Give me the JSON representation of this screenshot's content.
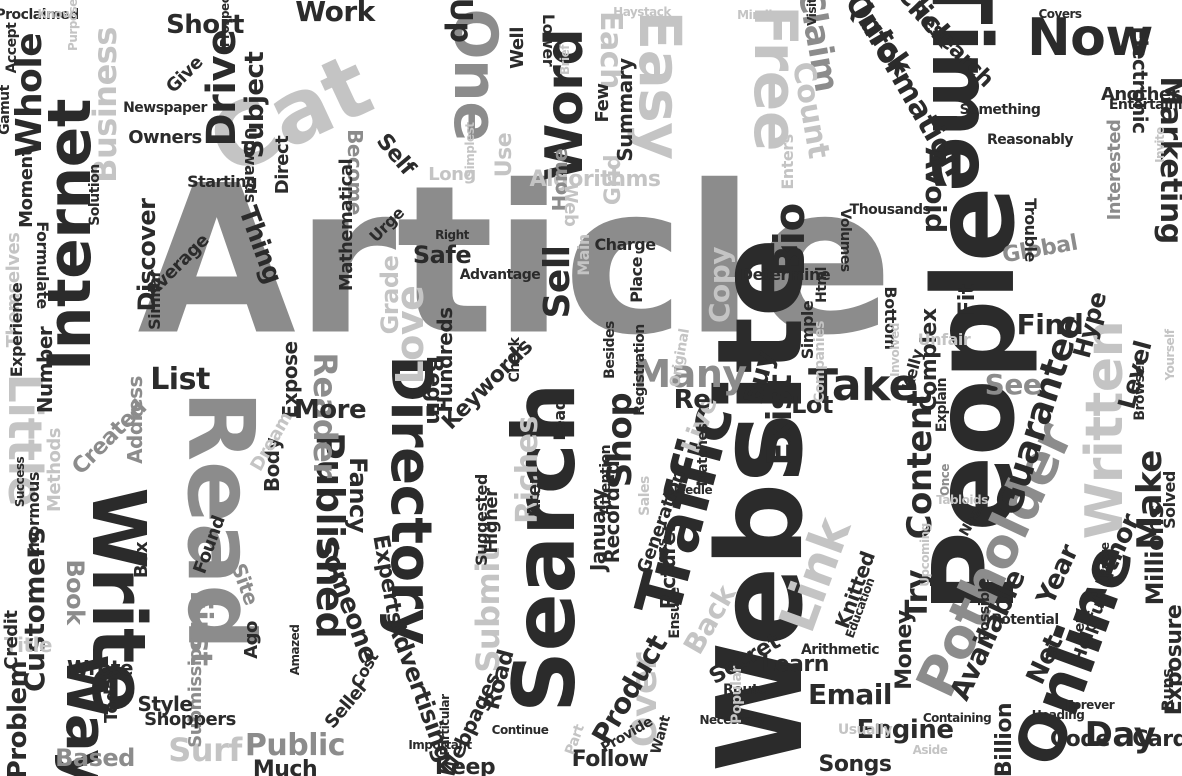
{
  "palette": {
    "dark": "#2b2b2b",
    "mid": "#8c8c8c",
    "light": "#c4c4c4",
    "faint": "#dedede"
  },
  "words": [
    {
      "text": "Article",
      "tone": "mid"
    },
    {
      "text": "Website",
      "tone": "dark"
    },
    {
      "text": "People",
      "tone": "dark"
    },
    {
      "text": "Read",
      "tone": "mid"
    },
    {
      "text": "Search",
      "tone": "dark"
    },
    {
      "text": "Write",
      "tone": "dark"
    },
    {
      "text": "Cat",
      "tone": "light"
    },
    {
      "text": "Time",
      "tone": "dark"
    },
    {
      "text": "Directory",
      "tone": "dark"
    },
    {
      "text": "Traffic",
      "tone": "dark"
    },
    {
      "text": "Potholder",
      "tone": "mid"
    },
    {
      "text": "Online",
      "tone": "dark"
    },
    {
      "text": "Internet",
      "tone": "dark"
    },
    {
      "text": "Way",
      "tone": "dark"
    },
    {
      "text": "Written",
      "tone": "light"
    },
    {
      "text": "Easy",
      "tone": "light"
    },
    {
      "text": "One",
      "tone": "mid"
    },
    {
      "text": "Free",
      "tone": "light"
    },
    {
      "text": "Now",
      "tone": "dark"
    },
    {
      "text": "Word",
      "tone": "dark"
    },
    {
      "text": "Little",
      "tone": "light"
    },
    {
      "text": "Link",
      "tone": "light"
    },
    {
      "text": "Take",
      "tone": "dark"
    },
    {
      "text": "Guarantee",
      "tone": "dark"
    },
    {
      "text": "Published",
      "tone": "dark"
    },
    {
      "text": "Drive",
      "tone": "dark"
    },
    {
      "text": "Whole",
      "tone": "dark"
    },
    {
      "text": "Business",
      "tone": "light"
    },
    {
      "text": "Claim",
      "tone": "mid"
    },
    {
      "text": "Information",
      "tone": "dark"
    },
    {
      "text": "Quick",
      "tone": "dark"
    },
    {
      "text": "Click",
      "tone": "dark"
    },
    {
      "text": "Marketing",
      "tone": "dark"
    },
    {
      "text": "Many",
      "tone": "mid"
    },
    {
      "text": "Reader",
      "tone": "mid"
    },
    {
      "text": "Bio",
      "tone": "dark"
    },
    {
      "text": "Sell",
      "tone": "dark"
    },
    {
      "text": "Love",
      "tone": "light"
    },
    {
      "text": "Exist",
      "tone": "dark"
    },
    {
      "text": "Content",
      "tone": "dark"
    },
    {
      "text": "Make",
      "tone": "dark"
    },
    {
      "text": "Day",
      "tone": "dark"
    },
    {
      "text": "Try",
      "tone": "dark"
    },
    {
      "text": "Submit",
      "tone": "light"
    },
    {
      "text": "Riches",
      "tone": "light"
    },
    {
      "text": "Shop",
      "tone": "dark"
    },
    {
      "text": "Over",
      "tone": "light"
    },
    {
      "text": "Surf",
      "tone": "light"
    },
    {
      "text": "Public",
      "tone": "mid"
    },
    {
      "text": "Email",
      "tone": "dark"
    },
    {
      "text": "Engine",
      "tone": "dark"
    },
    {
      "text": "Customers",
      "tone": "dark"
    },
    {
      "text": "Problem",
      "tone": "dark"
    },
    {
      "text": "Book",
      "tone": "mid"
    },
    {
      "text": "Based",
      "tone": "mid"
    },
    {
      "text": "List",
      "tone": "dark"
    },
    {
      "text": "Up",
      "tone": "dark"
    },
    {
      "text": "Each",
      "tone": "light"
    },
    {
      "text": "Count",
      "tone": "light"
    },
    {
      "text": "Avoid",
      "tone": "dark"
    },
    {
      "text": "Find",
      "tone": "dark"
    },
    {
      "text": "Hype",
      "tone": "dark"
    },
    {
      "text": "Level",
      "tone": "dark"
    },
    {
      "text": "See",
      "tone": "mid"
    },
    {
      "text": "Live",
      "tone": "light"
    },
    {
      "text": "Buy",
      "tone": "dark"
    },
    {
      "text": "Available",
      "tone": "dark"
    },
    {
      "text": "Year",
      "tone": "dark"
    },
    {
      "text": "Author",
      "tone": "dark"
    },
    {
      "text": "Net",
      "tone": "dark"
    },
    {
      "text": "Back",
      "tone": "light"
    },
    {
      "text": "Product",
      "tone": "dark"
    },
    {
      "text": "More",
      "tone": "dark"
    },
    {
      "text": "Someone",
      "tone": "dark"
    },
    {
      "text": "Fancy",
      "tone": "dark"
    },
    {
      "text": "Experts",
      "tone": "dark"
    },
    {
      "text": "First",
      "tone": "mid"
    },
    {
      "text": "Work",
      "tone": "dark"
    },
    {
      "text": "Short",
      "tone": "dark"
    },
    {
      "text": "Subject",
      "tone": "dark"
    },
    {
      "text": "Copy",
      "tone": "light"
    },
    {
      "text": "Thing",
      "tone": "dark"
    },
    {
      "text": "Discover",
      "tone": "dark"
    },
    {
      "text": "Safe",
      "tone": "dark"
    },
    {
      "text": "Grade",
      "tone": "light"
    },
    {
      "text": "Re",
      "tone": "dark"
    },
    {
      "text": "Lot",
      "tone": "dark"
    },
    {
      "text": "Global",
      "tone": "mid"
    },
    {
      "text": "Fit",
      "tone": "dark"
    },
    {
      "text": "Complex",
      "tone": "dark"
    },
    {
      "text": "Millions",
      "tone": "dark"
    },
    {
      "text": "Card",
      "tone": "dark"
    },
    {
      "text": "Billion",
      "tone": "dark"
    },
    {
      "text": "Songs",
      "tone": "dark"
    },
    {
      "text": "Follow",
      "tone": "dark"
    },
    {
      "text": "Much",
      "tone": "dark"
    },
    {
      "text": "Keep",
      "tone": "dark"
    },
    {
      "text": "Advertising",
      "tone": "dark"
    },
    {
      "text": "Road",
      "tone": "dark"
    },
    {
      "text": "Created",
      "tone": "mid"
    },
    {
      "text": "Address",
      "tone": "mid"
    },
    {
      "text": "Expose",
      "tone": "dark"
    },
    {
      "text": "Begin",
      "tone": "dark"
    },
    {
      "text": "Learn",
      "tone": "dark"
    },
    {
      "text": "Secret",
      "tone": "dark"
    },
    {
      "text": "Knitted",
      "tone": "dark"
    },
    {
      "text": "Money",
      "tone": "dark"
    },
    {
      "text": "Code",
      "tone": "dark"
    },
    {
      "text": "Exposure",
      "tone": "dark"
    },
    {
      "text": "Helpful",
      "tone": "dark"
    },
    {
      "text": "Electronic",
      "tone": "dark"
    },
    {
      "text": "Research",
      "tone": "dark"
    },
    {
      "text": "Another",
      "tone": "dark"
    },
    {
      "text": "Interested",
      "tone": "mid"
    },
    {
      "text": "Algorithms",
      "tone": "light"
    },
    {
      "text": "Home",
      "tone": "mid"
    },
    {
      "text": "Self",
      "tone": "dark"
    },
    {
      "text": "Become",
      "tone": "mid"
    },
    {
      "text": "Grid",
      "tone": "light"
    },
    {
      "text": "Use",
      "tone": "light"
    },
    {
      "text": "Summary",
      "tone": "dark"
    },
    {
      "text": "Number",
      "tone": "dark"
    },
    {
      "text": "Themselves",
      "tone": "light"
    },
    {
      "text": "Submission",
      "tone": "mid"
    },
    {
      "text": "Site",
      "tone": "mid"
    },
    {
      "text": "Body",
      "tone": "dark"
    },
    {
      "text": "Title",
      "tone": "light"
    },
    {
      "text": "Found",
      "tone": "dark"
    },
    {
      "text": "Wrote",
      "tone": "dark"
    },
    {
      "text": "Credit",
      "tone": "dark"
    },
    {
      "text": "Style",
      "tone": "dark"
    },
    {
      "text": "Shoppers",
      "tone": "dark"
    },
    {
      "text": "Aren",
      "tone": "dark"
    },
    {
      "text": "January",
      "tone": "dark"
    },
    {
      "text": "Recorded",
      "tone": "dark"
    },
    {
      "text": "Pictures",
      "tone": "dark"
    },
    {
      "text": "Generation",
      "tone": "dark"
    },
    {
      "text": "Higher",
      "tone": "dark"
    },
    {
      "text": "Suggested",
      "tone": "dark"
    },
    {
      "text": "Hundreds",
      "tone": "dark"
    },
    {
      "text": "Keywords",
      "tone": "dark"
    },
    {
      "text": "Dream",
      "tone": "light"
    },
    {
      "text": "Methods",
      "tone": "light"
    },
    {
      "text": "Enormous",
      "tone": "dark"
    },
    {
      "text": "Webpages",
      "tone": "dark"
    },
    {
      "text": "Ago",
      "tone": "dark"
    },
    {
      "text": "Seller",
      "tone": "dark"
    },
    {
      "text": "Cost",
      "tone": "dark"
    },
    {
      "text": "Today",
      "tone": "dark"
    },
    {
      "text": "Box",
      "tone": "dark"
    },
    {
      "text": "Give",
      "tone": "dark"
    },
    {
      "text": "Owners",
      "tone": "dark"
    },
    {
      "text": "Moment",
      "tone": "dark"
    },
    {
      "text": "Formulate",
      "tone": "dark"
    },
    {
      "text": "Experience",
      "tone": "dark"
    },
    {
      "text": "Similar",
      "tone": "dark"
    },
    {
      "text": "Average",
      "tone": "dark"
    },
    {
      "text": "Urge",
      "tone": "dark"
    },
    {
      "text": "Upwards",
      "tone": "dark"
    },
    {
      "text": "Direct",
      "tone": "dark"
    },
    {
      "text": "Starting",
      "tone": "dark"
    },
    {
      "text": "Mathematical",
      "tone": "dark"
    },
    {
      "text": "Long",
      "tone": "light"
    },
    {
      "text": "Well",
      "tone": "dark"
    },
    {
      "text": "Few",
      "tone": "dark"
    },
    {
      "text": "Lower",
      "tone": "dark"
    },
    {
      "text": "Web",
      "tone": "light"
    },
    {
      "text": "Enters",
      "tone": "light"
    },
    {
      "text": "Main",
      "tone": "light"
    },
    {
      "text": "Charge",
      "tone": "dark"
    },
    {
      "text": "Place",
      "tone": "dark"
    },
    {
      "text": "Volumes",
      "tone": "dark"
    },
    {
      "text": "Determine",
      "tone": "dark"
    },
    {
      "text": "Html",
      "tone": "dark"
    },
    {
      "text": "Simple",
      "tone": "dark"
    },
    {
      "text": "Bottom",
      "tone": "dark"
    },
    {
      "text": "Unfair",
      "tone": "light"
    },
    {
      "text": "Explain",
      "tone": "dark"
    },
    {
      "text": "Once",
      "tone": "mid"
    },
    {
      "text": "Needs",
      "tone": "dark"
    },
    {
      "text": "Possible",
      "tone": "dark"
    },
    {
      "text": "Education",
      "tone": "dark"
    },
    {
      "text": "Arithmetic",
      "tone": "dark"
    },
    {
      "text": "Route",
      "tone": "dark"
    },
    {
      "text": "Necessary",
      "tone": "dark"
    },
    {
      "text": "Solved",
      "tone": "dark"
    },
    {
      "text": "Runs",
      "tone": "dark"
    },
    {
      "text": "Popular",
      "tone": "light"
    },
    {
      "text": "Want",
      "tone": "dark"
    },
    {
      "text": "Part",
      "tone": "light"
    },
    {
      "text": "Provide",
      "tone": "dark"
    },
    {
      "text": "Ensure",
      "tone": "dark"
    },
    {
      "text": "Less",
      "tone": "dark"
    },
    {
      "text": "Sales",
      "tone": "light"
    },
    {
      "text": "Needle",
      "tone": "dark"
    },
    {
      "text": "Matches",
      "tone": "dark"
    },
    {
      "text": "Attention",
      "tone": "dark"
    },
    {
      "text": "Lead",
      "tone": "dark"
    },
    {
      "text": "Check",
      "tone": "dark"
    },
    {
      "text": "Besides",
      "tone": "dark"
    },
    {
      "text": "Registration",
      "tone": "dark"
    },
    {
      "text": "Advantage",
      "tone": "dark"
    },
    {
      "text": "Original",
      "tone": "light"
    },
    {
      "text": "Companies",
      "tone": "light"
    },
    {
      "text": "Involved",
      "tone": "light"
    },
    {
      "text": "Kelly",
      "tone": "dark"
    },
    {
      "text": "Browser",
      "tone": "dark"
    },
    {
      "text": "Yourself",
      "tone": "light"
    },
    {
      "text": "Trouble",
      "tone": "dark"
    },
    {
      "text": "Reasonably",
      "tone": "dark"
    },
    {
      "text": "Entertaining",
      "tone": "dark"
    },
    {
      "text": "Invite",
      "tone": "light"
    },
    {
      "text": "Thousands",
      "tone": "dark"
    },
    {
      "text": "Something",
      "tone": "dark"
    },
    {
      "text": "Accept",
      "tone": "dark"
    },
    {
      "text": "Gamut",
      "tone": "dark"
    },
    {
      "text": "Proclaimed",
      "tone": "dark"
    },
    {
      "text": "Newspaper",
      "tone": "dark"
    },
    {
      "text": "Solution",
      "tone": "dark"
    },
    {
      "text": "Prospective",
      "tone": "dark"
    },
    {
      "text": "Simplest",
      "tone": "light"
    },
    {
      "text": "Haystack",
      "tone": "light"
    },
    {
      "text": "Mindless",
      "tone": "light"
    },
    {
      "text": "Visit",
      "tone": "dark"
    },
    {
      "text": "Right",
      "tone": "dark"
    },
    {
      "text": "Brief",
      "tone": "light"
    },
    {
      "text": "Tabloids",
      "tone": "light"
    },
    {
      "text": "Usually",
      "tone": "light"
    },
    {
      "text": "Aside",
      "tone": "light"
    },
    {
      "text": "Potential",
      "tone": "dark"
    },
    {
      "text": "Forever",
      "tone": "dark"
    },
    {
      "text": "Heading",
      "tone": "dark"
    },
    {
      "text": "Containing",
      "tone": "dark"
    },
    {
      "text": "Continue",
      "tone": "dark"
    },
    {
      "text": "Important",
      "tone": "dark"
    },
    {
      "text": "Particular",
      "tone": "dark"
    },
    {
      "text": "Amazed",
      "tone": "dark"
    },
    {
      "text": "Know",
      "tone": "light"
    },
    {
      "text": "Purpose",
      "tone": "light"
    },
    {
      "text": "Covers",
      "tone": "dark"
    },
    {
      "text": "Very",
      "tone": "dark"
    },
    {
      "text": "Success",
      "tone": "dark"
    },
    {
      "text": "Paste",
      "tone": "dark"
    },
    {
      "text": "Upcoming",
      "tone": "light"
    },
    {
      "text": "Expert",
      "tone": "light"
    },
    {
      "text": "Inexpensive",
      "tone": "light"
    }
  ]
}
